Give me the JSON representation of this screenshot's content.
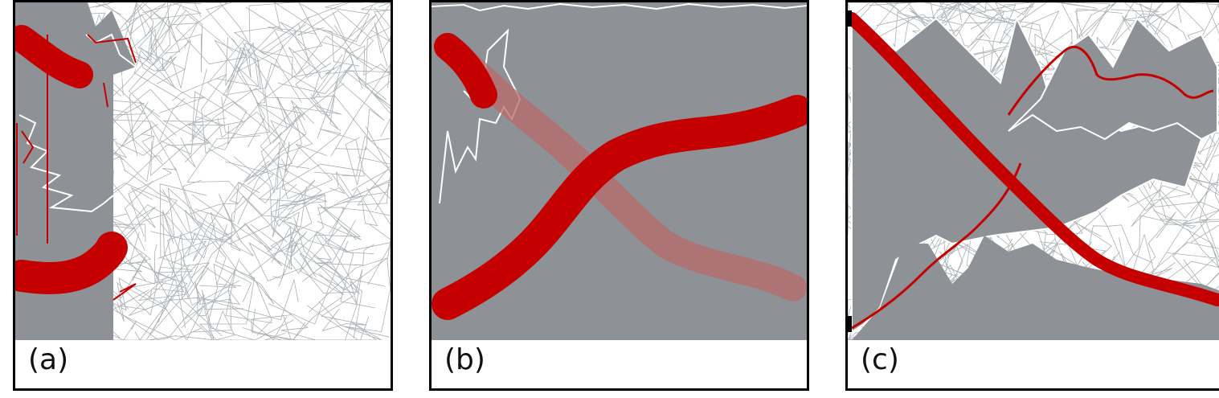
{
  "panels": [
    {
      "id": "a",
      "label": "(a)"
    },
    {
      "id": "b",
      "label": "(b)"
    },
    {
      "id": "c",
      "label": "(c)"
    }
  ],
  "colors": {
    "background_lines": "#aab0b4",
    "band": "#8e9195",
    "highlight": "#c40000",
    "highlight_faded": "#b86a6a",
    "edge": "#ffffff"
  }
}
